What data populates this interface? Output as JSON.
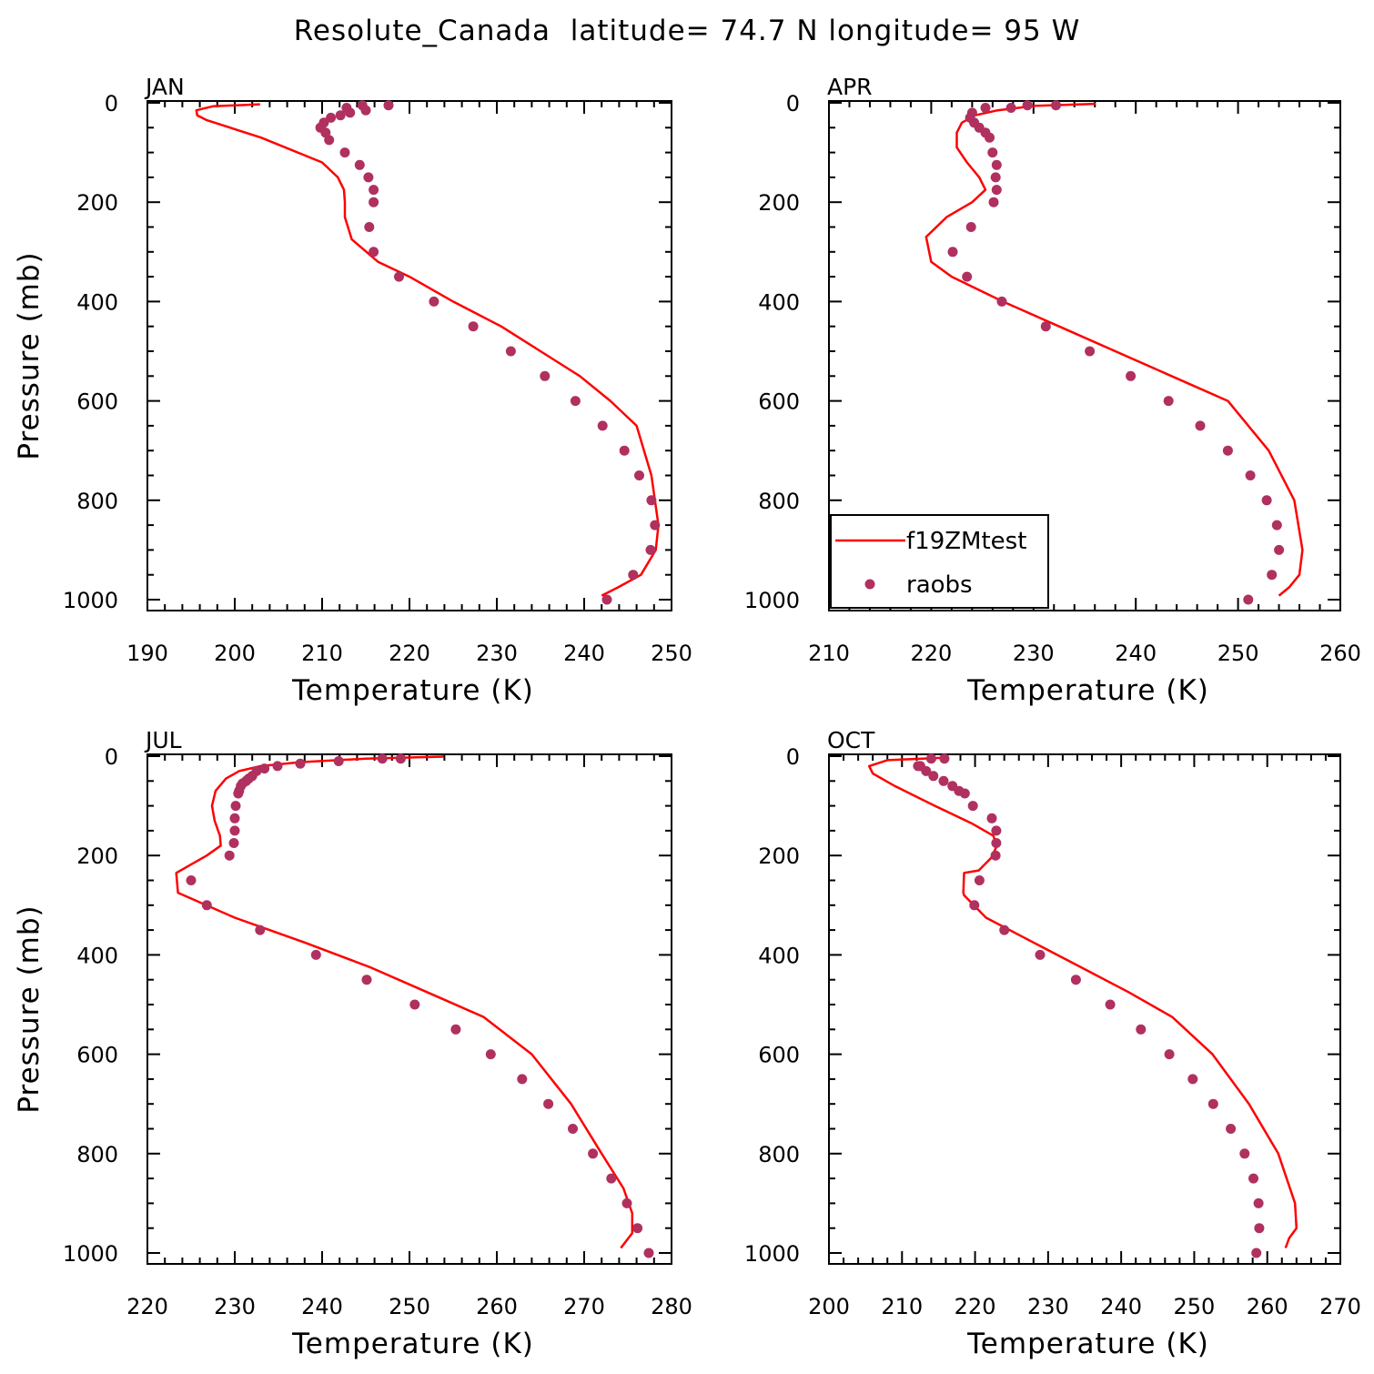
{
  "title": "Resolute_Canada  latitude= 74.7 N longitude= 95 W",
  "colors": {
    "model": "#ff0000",
    "obs": "#b03060",
    "axis": "#000000"
  },
  "legend": {
    "placement": "bottom-left of APR panel",
    "model_label": "f19ZMtest",
    "obs_label": "raobs"
  },
  "chart_data": [
    {
      "type": "line+scatter",
      "panel": "JAN",
      "xlabel": "Temperature (K)",
      "ylabel": "Pressure (mb)",
      "xlim": [
        190,
        250
      ],
      "xticks": [
        190,
        200,
        210,
        220,
        230,
        240,
        250
      ],
      "ylim": [
        1000,
        0
      ],
      "yticks": [
        0,
        200,
        400,
        600,
        800,
        1000
      ],
      "y_reversed": true,
      "series": [
        {
          "name": "f19ZMtest",
          "kind": "line",
          "x": [
            202.9,
            197.5,
            195.6,
            195.7,
            196.8,
            203.0,
            210.0,
            211.8,
            212.5,
            212.6,
            212.6,
            213.4,
            216.4,
            220.0,
            225.0,
            230.5,
            235.0,
            239.5,
            243.0,
            246.0,
            247.7,
            248.5,
            248.2,
            246.5,
            243.9,
            242.0
          ],
          "y": [
            3,
            7,
            15,
            25,
            35,
            70,
            120,
            150,
            175,
            200,
            230,
            275,
            320,
            350,
            400,
            450,
            500,
            550,
            600,
            650,
            750,
            850,
            900,
            950,
            975,
            992
          ]
        },
        {
          "name": "raobs",
          "kind": "scatter",
          "x": [
            217.6,
            214.6,
            212.8,
            215.0,
            213.2,
            212.1,
            211.0,
            210.2,
            209.8,
            210.4,
            210.8,
            212.6,
            214.3,
            215.3,
            215.9,
            215.9,
            215.4,
            215.9,
            218.8,
            222.8,
            227.3,
            231.6,
            235.5,
            239.0,
            242.1,
            244.6,
            246.3,
            247.7,
            248.1,
            247.6,
            245.6,
            242.6
          ],
          "y": [
            5,
            5,
            10,
            15,
            20,
            25,
            30,
            40,
            50,
            60,
            75,
            100,
            125,
            150,
            175,
            200,
            250,
            300,
            350,
            400,
            450,
            500,
            550,
            600,
            650,
            700,
            750,
            800,
            850,
            900,
            950,
            1000
          ]
        }
      ]
    },
    {
      "type": "line+scatter",
      "panel": "APR",
      "xlabel": "Temperature (K)",
      "ylabel": "",
      "xlim": [
        210,
        260
      ],
      "xticks": [
        210,
        220,
        230,
        240,
        250,
        260
      ],
      "ylim": [
        1000,
        0
      ],
      "yticks": [
        0,
        200,
        400,
        600,
        800,
        1000
      ],
      "y_reversed": true,
      "series": [
        {
          "name": "f19ZMtest",
          "kind": "line",
          "x": [
            236.1,
            230.2,
            226.5,
            224.3,
            223.0,
            222.5,
            222.5,
            223.5,
            224.7,
            225.3,
            224.0,
            221.5,
            219.5,
            220.0,
            222.0,
            227.0,
            232.5,
            238.0,
            243.5,
            249.0,
            253.0,
            255.5,
            256.3,
            256.0,
            255.0,
            254.0
          ],
          "y": [
            2,
            6,
            15,
            25,
            40,
            60,
            90,
            120,
            150,
            175,
            200,
            230,
            270,
            320,
            350,
            400,
            450,
            500,
            550,
            600,
            700,
            800,
            900,
            950,
            975,
            992
          ]
        },
        {
          "name": "raobs",
          "kind": "scatter",
          "x": [
            232.2,
            229.4,
            227.8,
            225.3,
            224.0,
            223.8,
            224.2,
            224.7,
            225.3,
            225.7,
            226.0,
            226.4,
            226.3,
            226.4,
            226.1,
            223.9,
            222.1,
            223.5,
            226.9,
            231.2,
            235.5,
            239.5,
            243.2,
            246.3,
            249.0,
            251.2,
            252.8,
            253.8,
            254.0,
            253.3,
            251.0
          ],
          "y": [
            5,
            5,
            10,
            10,
            20,
            30,
            40,
            50,
            60,
            70,
            100,
            125,
            150,
            175,
            200,
            250,
            300,
            350,
            400,
            450,
            500,
            550,
            600,
            650,
            700,
            750,
            800,
            850,
            900,
            950,
            1000
          ]
        }
      ]
    },
    {
      "type": "line+scatter",
      "panel": "JUL",
      "xlabel": "Temperature (K)",
      "ylabel": "Pressure (mb)",
      "xlim": [
        220,
        280
      ],
      "xticks": [
        220,
        230,
        240,
        250,
        260,
        270,
        280
      ],
      "ylim": [
        1000,
        0
      ],
      "yticks": [
        0,
        200,
        400,
        600,
        800,
        1000
      ],
      "y_reversed": true,
      "series": [
        {
          "name": "f19ZMtest",
          "kind": "line",
          "x": [
            253.9,
            245.0,
            237.5,
            233.0,
            230.5,
            229.0,
            227.8,
            227.4,
            227.7,
            228.3,
            228.4,
            226.8,
            223.3,
            223.5,
            230.0,
            238.0,
            245.5,
            252.0,
            258.5,
            264.0,
            268.5,
            272.0,
            274.5,
            275.5,
            275.5,
            274.2
          ],
          "y": [
            1,
            5,
            12,
            20,
            30,
            45,
            70,
            100,
            130,
            160,
            180,
            200,
            235,
            275,
            325,
            375,
            425,
            475,
            525,
            600,
            700,
            800,
            870,
            920,
            960,
            990
          ]
        },
        {
          "name": "raobs",
          "kind": "scatter",
          "x": [
            249.0,
            246.9,
            241.9,
            237.5,
            234.9,
            233.4,
            232.5,
            232.0,
            231.6,
            231.3,
            230.9,
            230.7,
            230.5,
            230.4,
            230.1,
            230.0,
            230.0,
            229.9,
            229.4,
            225.0,
            226.8,
            232.9,
            239.3,
            245.1,
            250.6,
            255.3,
            259.3,
            262.9,
            265.9,
            268.7,
            271.0,
            273.1,
            274.9,
            276.1,
            277.4
          ],
          "y": [
            5,
            5,
            10,
            15,
            20,
            25,
            30,
            40,
            45,
            50,
            55,
            60,
            70,
            75,
            100,
            125,
            150,
            175,
            200,
            250,
            300,
            350,
            400,
            450,
            500,
            550,
            600,
            650,
            700,
            750,
            800,
            850,
            900,
            950,
            1000
          ]
        }
      ]
    },
    {
      "type": "line+scatter",
      "panel": "OCT",
      "xlabel": "Temperature (K)",
      "ylabel": "",
      "xlim": [
        200,
        270
      ],
      "xticks": [
        200,
        210,
        220,
        230,
        240,
        250,
        260,
        270
      ],
      "ylim": [
        1000,
        0
      ],
      "yticks": [
        0,
        200,
        400,
        600,
        800,
        1000
      ],
      "y_reversed": true,
      "series": [
        {
          "name": "f19ZMtest",
          "kind": "line",
          "x": [
            216.0,
            208.0,
            205.5,
            206.0,
            209.0,
            214.5,
            219.5,
            222.5,
            223.0,
            222.2,
            220.5,
            218.5,
            218.4,
            218.5,
            221.5,
            228.0,
            234.5,
            241.0,
            247.0,
            252.5,
            257.5,
            261.5,
            263.8,
            264.0,
            263.0,
            262.5
          ],
          "y": [
            3,
            8,
            20,
            35,
            60,
            100,
            135,
            160,
            180,
            205,
            230,
            235,
            275,
            280,
            325,
            375,
            425,
            475,
            525,
            600,
            700,
            800,
            900,
            950,
            970,
            990
          ]
        },
        {
          "name": "raobs",
          "kind": "scatter",
          "x": [
            215.8,
            214.0,
            212.2,
            212.5,
            213.3,
            214.3,
            215.7,
            216.9,
            217.8,
            218.6,
            219.7,
            222.3,
            222.9,
            222.9,
            222.8,
            220.6,
            219.9,
            224.0,
            228.9,
            233.8,
            238.5,
            242.7,
            246.6,
            249.8,
            252.6,
            255.0,
            256.9,
            258.1,
            258.8,
            258.9,
            258.5
          ],
          "y": [
            5,
            5,
            20,
            20,
            30,
            40,
            50,
            60,
            70,
            75,
            100,
            125,
            150,
            175,
            200,
            250,
            300,
            350,
            400,
            450,
            500,
            550,
            600,
            650,
            700,
            750,
            800,
            850,
            900,
            950,
            1000
          ]
        }
      ]
    }
  ]
}
